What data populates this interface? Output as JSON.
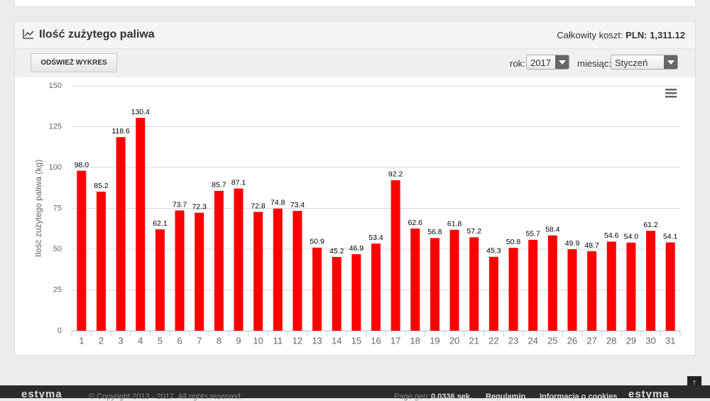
{
  "header": {
    "title": "Ilość zużytego paliwa",
    "cost_label": "Całkowity koszt:",
    "cost_value": "PLN: 1,311.12"
  },
  "toolbar": {
    "refresh_button": "ODŚWIEŻ WYKRES",
    "year_label": "rok:",
    "year_value": "2017",
    "month_label": "miesiąc:",
    "month_value": "Styczeń"
  },
  "footer": {
    "logo": "estyma",
    "copyright": "© Copyright 2013 - 2017. All rights reserved.",
    "page_gen_label": "Page gen:",
    "page_gen_value": "0.0336 sek.",
    "links": [
      "Regulamin",
      "Informacja o cookies"
    ]
  },
  "chart_data": {
    "type": "bar",
    "y_label": "Ilość zużytego paliwa (kg)",
    "color": "#ff0000",
    "grid": true,
    "categories": [
      "1",
      "2",
      "3",
      "4",
      "5",
      "6",
      "7",
      "8",
      "9",
      "10",
      "11",
      "12",
      "13",
      "14",
      "15",
      "16",
      "17",
      "18",
      "19",
      "20",
      "21",
      "22",
      "23",
      "24",
      "25",
      "26",
      "27",
      "28",
      "29",
      "30",
      "31"
    ],
    "values": [
      98.0,
      85.2,
      118.6,
      130.4,
      62.1,
      73.7,
      72.3,
      85.7,
      87.1,
      72.8,
      74.8,
      73.4,
      50.9,
      45.2,
      46.9,
      53.4,
      92.2,
      62.6,
      56.8,
      61.8,
      57.2,
      45.3,
      50.8,
      55.7,
      58.4,
      49.9,
      48.7,
      54.6,
      54.0,
      61.2,
      54.1
    ],
    "value_labels": [
      "98.0",
      "85.2",
      "118.6",
      "130.4",
      "62.1",
      "73.7",
      "72.3",
      "85.7",
      "87.1",
      "72.8",
      "74.8",
      "73.4",
      "50.9",
      "45.2",
      "46.9",
      "53.4",
      "92.2",
      "62.6",
      "56.8",
      "61.8",
      "57.2",
      "45.3",
      "50.8",
      "55.7",
      "58.4",
      "49.9",
      "48.7",
      "54.6",
      "54.0",
      "61.2",
      "54.1"
    ],
    "ylim": [
      0,
      150
    ],
    "yticks": [
      0,
      25,
      50,
      75,
      100,
      125,
      150
    ]
  }
}
